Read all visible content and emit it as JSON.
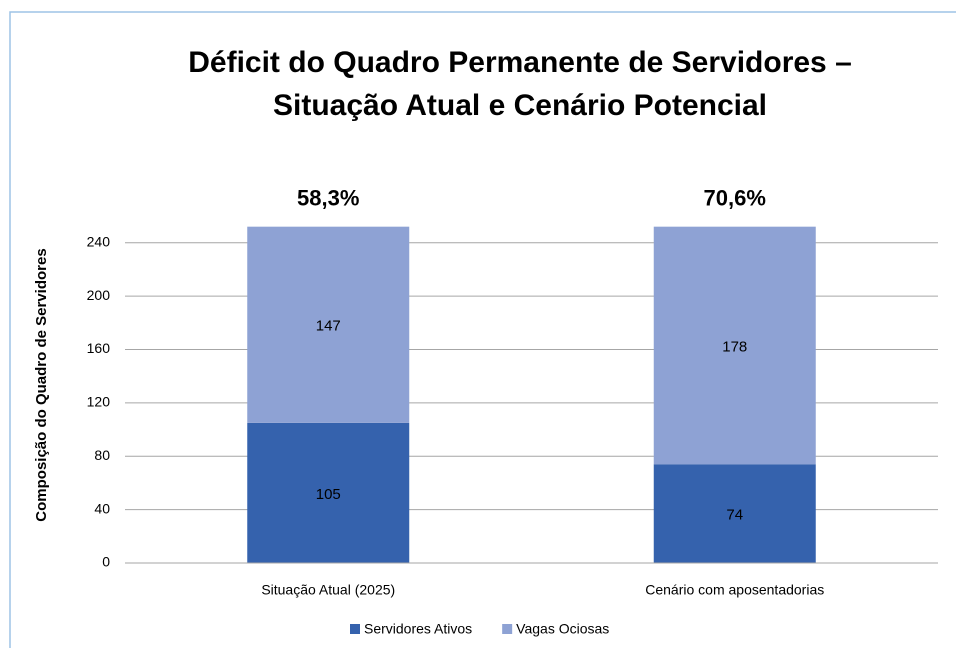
{
  "chart_data": {
    "type": "stacked_bar",
    "title": [
      "Déficit do Quadro Permanente de Servidores –",
      "Situação Atual e Cenário Potencial"
    ],
    "y_label": "Composição do Quadro de Servidores",
    "categories": [
      "Situação Atual (2025)",
      "Cenário com aposentadorias"
    ],
    "series": [
      {
        "name": "Servidores Ativos",
        "color": "#3562ad",
        "values": [
          105,
          74
        ]
      },
      {
        "name": "Vagas Ociosas",
        "color": "#8ea2d4",
        "values": [
          147,
          178
        ]
      }
    ],
    "annotations": [
      "58,3%",
      "70,6%"
    ],
    "ylim": [
      0,
      260
    ],
    "yticks": [
      0,
      40,
      80,
      120,
      160,
      200,
      240
    ],
    "grid": true,
    "legend": "bottom"
  }
}
